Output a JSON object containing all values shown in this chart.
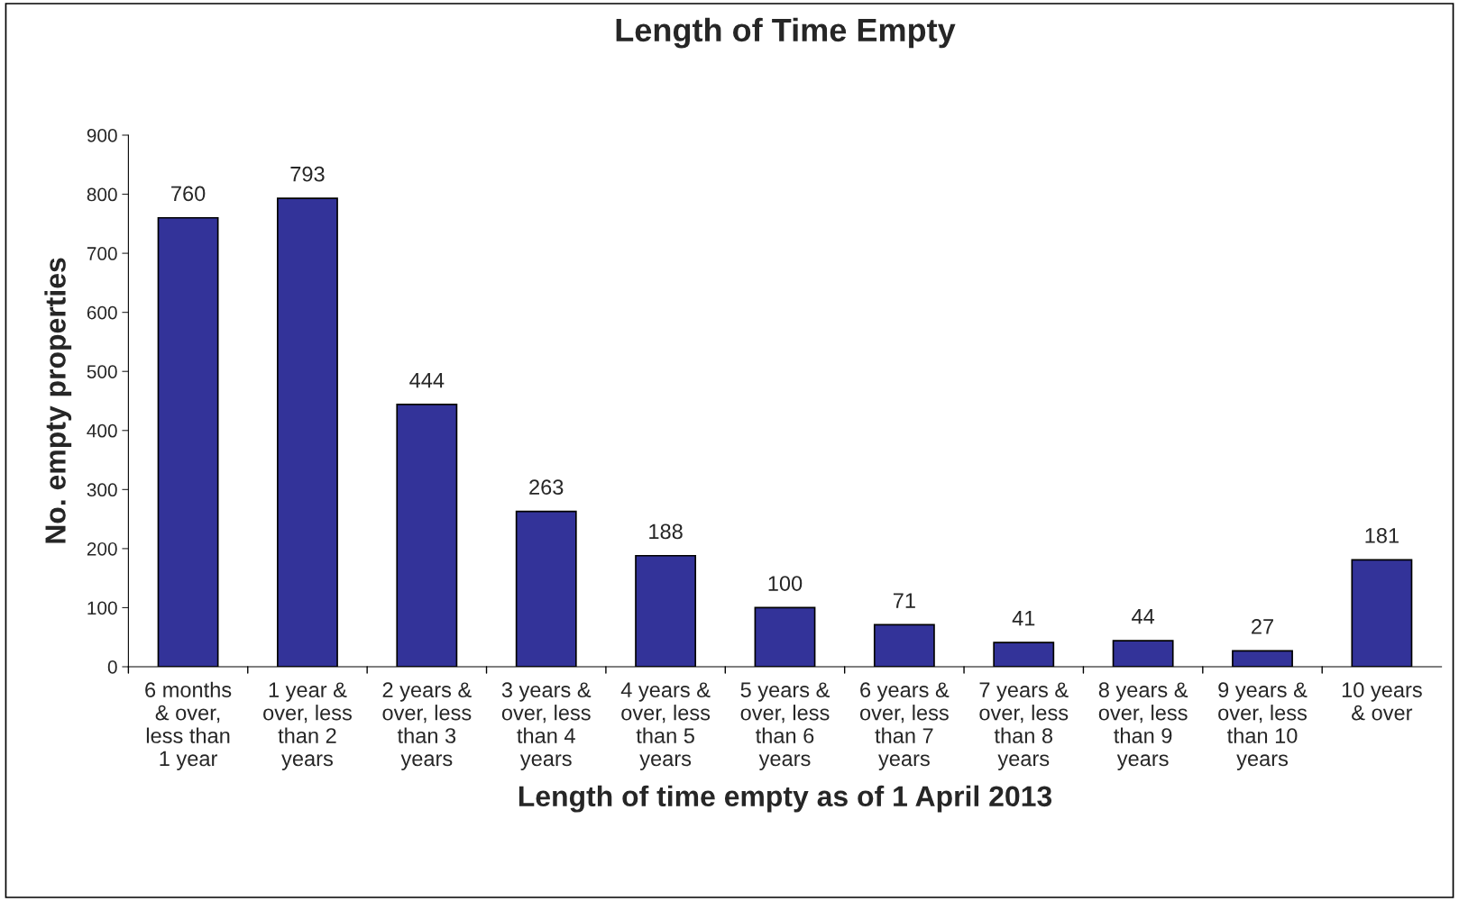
{
  "chart_data": {
    "type": "bar",
    "title": "Length of Time Empty",
    "xlabel": "Length of time empty as of 1 April 2013",
    "ylabel": "No. empty properties",
    "categories": [
      "6 months\n& over,\nless than\n1 year",
      "1 year &\nover, less\nthan 2\nyears",
      "2 years &\nover, less\nthan 3\nyears",
      "3 years &\nover, less\nthan 4\nyears",
      "4 years &\nover, less\nthan 5\nyears",
      "5 years &\nover, less\nthan 6\nyears",
      "6 years &\nover, less\nthan 7\nyears",
      "7 years &\nover, less\nthan 8\nyears",
      "8 years &\nover, less\nthan 9\nyears",
      "9 years &\nover, less\nthan 10\nyears",
      "10 years\n& over"
    ],
    "values": [
      760,
      793,
      444,
      263,
      188,
      100,
      71,
      41,
      44,
      27,
      181
    ],
    "color": "#333399",
    "ylim": [
      0,
      900
    ],
    "yticks": [
      0,
      100,
      200,
      300,
      400,
      500,
      600,
      700,
      800,
      900
    ],
    "data_labels": true,
    "grid": false,
    "legend": false
  }
}
